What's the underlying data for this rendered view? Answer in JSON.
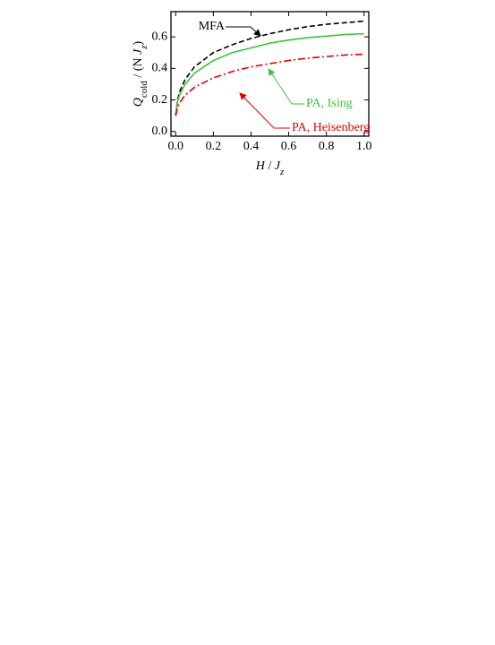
{
  "chart_data": {
    "type": "line",
    "xlabel": [
      {
        "text": "H",
        "italic": true
      },
      {
        "text": " / "
      },
      {
        "text": "J",
        "italic": true
      },
      {
        "text": "z",
        "italic": true,
        "sub": true
      }
    ],
    "ylabel": [
      {
        "text": "Q",
        "italic": true
      },
      {
        "text": "cold",
        "sub": true
      },
      {
        "text": " / (N "
      },
      {
        "text": "J",
        "italic": true
      },
      {
        "text": "z",
        "italic": true,
        "sub": true
      },
      {
        "text": ")"
      }
    ],
    "x": [
      0,
      0.01,
      0.02,
      0.05,
      0.1,
      0.2,
      0.3,
      0.4,
      0.5,
      0.6,
      0.7,
      0.8,
      0.9,
      1.0
    ],
    "series": [
      {
        "name": "MFA",
        "color": "#000000",
        "dash": "6,3",
        "label_color": "#000000",
        "values": [
          0.1,
          0.2,
          0.25,
          0.33,
          0.41,
          0.5,
          0.55,
          0.59,
          0.62,
          0.645,
          0.665,
          0.68,
          0.69,
          0.7
        ]
      },
      {
        "name": "PA, Ising",
        "color": "#3cc43c",
        "dash": "none",
        "label_color": "#3cc43c",
        "values": [
          0.1,
          0.19,
          0.23,
          0.3,
          0.37,
          0.45,
          0.5,
          0.53,
          0.56,
          0.58,
          0.595,
          0.605,
          0.615,
          0.62
        ]
      },
      {
        "name": "PA, Heisenberg",
        "color": "#e00000",
        "dash": "8,3,2,3",
        "label_color": "#e00000",
        "values": [
          0.1,
          0.15,
          0.18,
          0.23,
          0.28,
          0.34,
          0.38,
          0.41,
          0.43,
          0.45,
          0.465,
          0.475,
          0.485,
          0.49
        ]
      }
    ],
    "xlim": [
      -0.025,
      1.025
    ],
    "xticks": [
      {
        "value": 0,
        "label": "0.0"
      },
      0.2,
      0.4,
      0.6,
      0.8,
      {
        "value": 1,
        "label": "1.0"
      }
    ],
    "ylim": [
      -0.03,
      0.76
    ],
    "yticks": [
      {
        "value": 0,
        "label": "0.0"
      },
      0.2,
      0.4,
      0.6
    ],
    "grid": false
  }
}
